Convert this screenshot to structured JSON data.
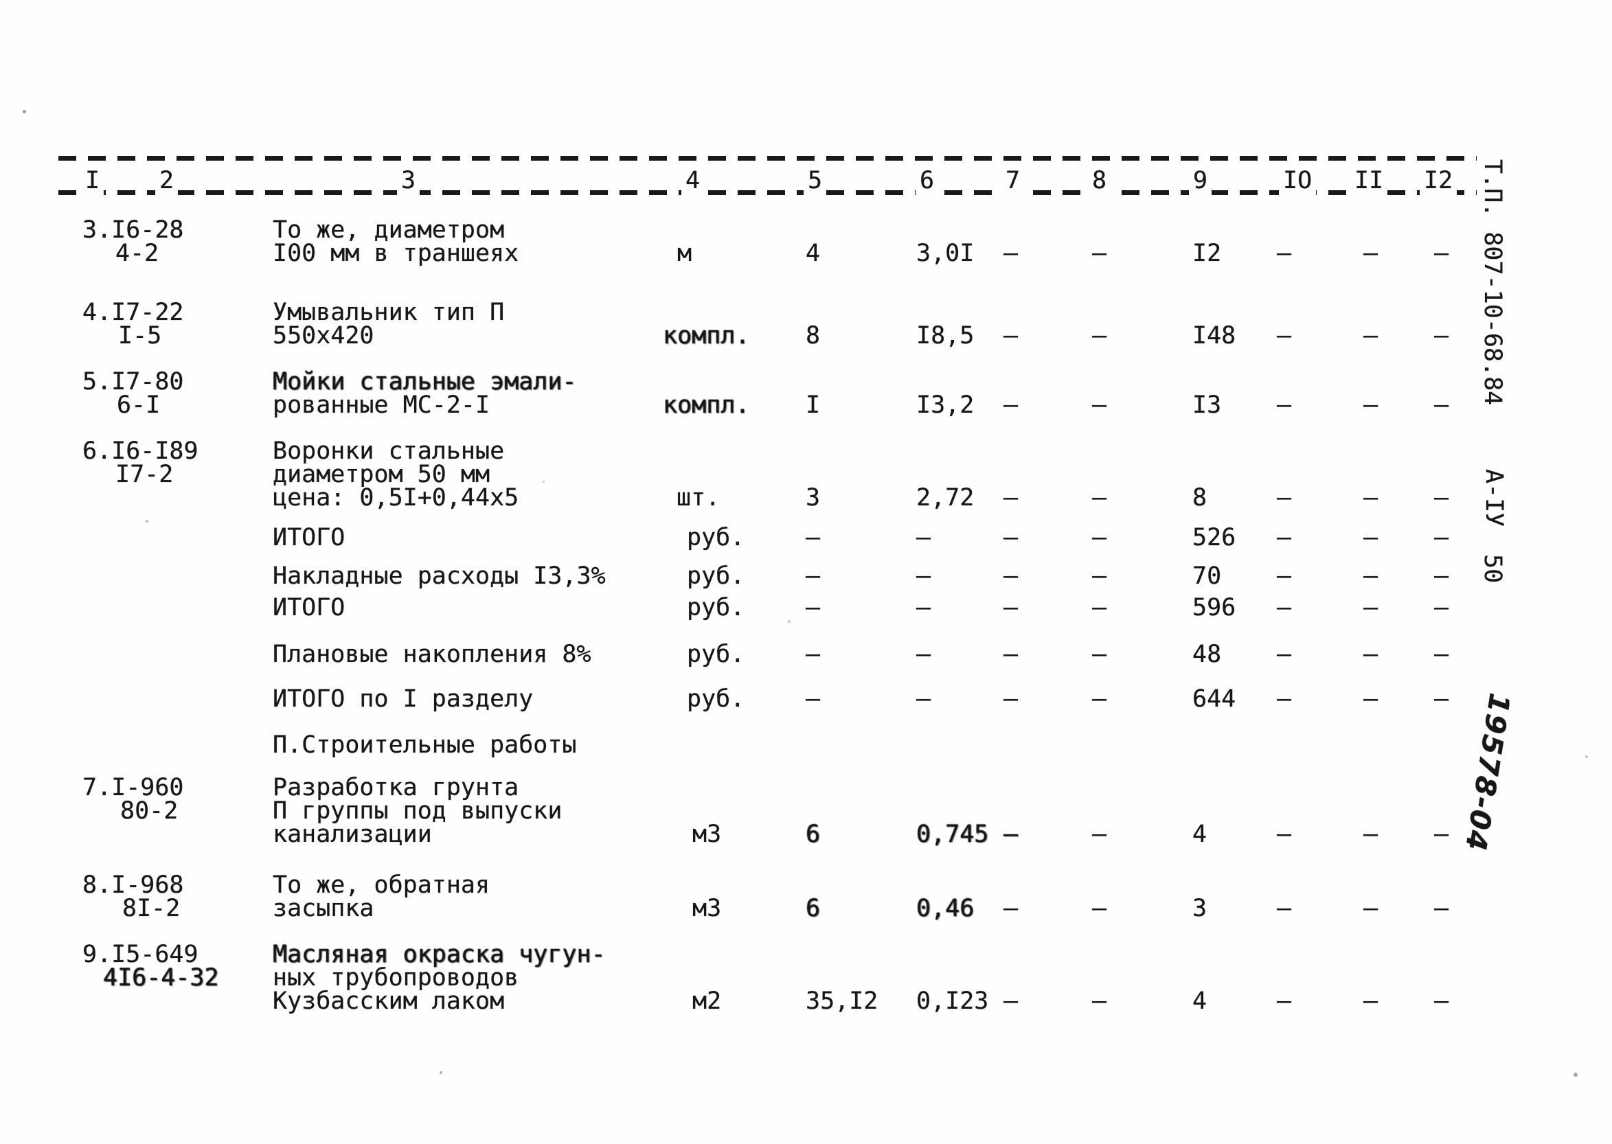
{
  "margin": {
    "type_code": "Т.П. 807-10-68.84",
    "series_code": "А-IУ",
    "sheet_number": "50",
    "handwritten_mark": "19578-04"
  },
  "table": {
    "column_numbers": [
      "I",
      "2",
      "3",
      "4",
      "5",
      "6",
      "7",
      "8",
      "9",
      "IO",
      "II",
      "I2"
    ],
    "rows": [
      {
        "kind": "item",
        "ref1": "3.I6-28",
        "ref2": "4-2",
        "desc": [
          "То же, диаметром",
          "I00 мм в траншеях"
        ],
        "unit": "м",
        "qty": "4",
        "price": "3,0I",
        "c7": "—",
        "c8": "—",
        "c9": "I2",
        "c10": "—",
        "c11": "—",
        "c12": "—"
      },
      {
        "kind": "item",
        "ref1": "4.I7-22",
        "ref2": "I-5",
        "desc": [
          "Умывальник тип П",
          "550х420"
        ],
        "unit": "компл.",
        "qty": "8",
        "price": "I8,5",
        "c7": "—",
        "c8": "—",
        "c9": "I48",
        "c10": "—",
        "c11": "—",
        "c12": "—"
      },
      {
        "kind": "item",
        "ref1": "5.I7-80",
        "ref2": "6-I",
        "desc": [
          "Мойки стальные эмали-",
          "рованные МС-2-I"
        ],
        "unit": "компл.",
        "qty": "I",
        "price": "I3,2",
        "c7": "—",
        "c8": "—",
        "c9": "I3",
        "c10": "—",
        "c11": "—",
        "c12": "—"
      },
      {
        "kind": "item",
        "ref1": "6.I6-I89",
        "ref2": "I7-2",
        "desc": [
          "Воронки стальные",
          "диаметром 50 мм",
          "цена: 0,5I+0,44х5"
        ],
        "unit": "шт.",
        "qty": "3",
        "price": "2,72",
        "c7": "—",
        "c8": "—",
        "c9": "8",
        "c10": "—",
        "c11": "—",
        "c12": "—"
      },
      {
        "kind": "summary",
        "label": "ИТОГО",
        "unit": "руб.",
        "qty": "—",
        "price": "—",
        "c7": "—",
        "c8": "—",
        "c9": "526",
        "c10": "—",
        "c11": "—",
        "c12": "—"
      },
      {
        "kind": "summary",
        "label": "Накладные расходы I3,3%",
        "unit": "руб.",
        "qty": "—",
        "price": "—",
        "c7": "—",
        "c8": "—",
        "c9": "70",
        "c10": "—",
        "c11": "—",
        "c12": "—"
      },
      {
        "kind": "summary",
        "label": "ИТОГО",
        "unit": "руб.",
        "qty": "—",
        "price": "—",
        "c7": "—",
        "c8": "—",
        "c9": "596",
        "c10": "—",
        "c11": "—",
        "c12": "—"
      },
      {
        "kind": "summary",
        "label": "Плановые накопления 8%",
        "unit": "руб.",
        "qty": "—",
        "price": "—",
        "c7": "—",
        "c8": "—",
        "c9": "48",
        "c10": "—",
        "c11": "—",
        "c12": "—"
      },
      {
        "kind": "summary",
        "label": "ИТОГО по I разделу",
        "unit": "руб.",
        "qty": "—",
        "price": "—",
        "c7": "—",
        "c8": "—",
        "c9": "644",
        "c10": "—",
        "c11": "—",
        "c12": "—"
      },
      {
        "kind": "section",
        "label": "П.Строительные работы"
      },
      {
        "kind": "item",
        "ref1": "7.I-960",
        "ref2": "80-2",
        "desc": [
          "Разработка грунта",
          "П группы под выпуски",
          "канализации"
        ],
        "unit": "м3",
        "qty": "6",
        "price": "0,745",
        "c7": "—",
        "c8": "—",
        "c9": "4",
        "c10": "—",
        "c11": "—",
        "c12": "—"
      },
      {
        "kind": "item",
        "ref1": "8.I-968",
        "ref2": "8I-2",
        "desc": [
          "То же, обратная",
          "засыпка"
        ],
        "unit": "м3",
        "qty": "6",
        "price": "0,46",
        "c7": "—",
        "c8": "—",
        "c9": "3",
        "c10": "—",
        "c11": "—",
        "c12": "—"
      },
      {
        "kind": "item",
        "ref1": "9.I5-649",
        "ref2": "4I6-4-32",
        "desc": [
          "Масляная окраска чугун-",
          "ных трубопроводов",
          "Кузбасским лаком"
        ],
        "unit": "м2",
        "qty": "35,I2",
        "price": "0,I23",
        "c7": "—",
        "c8": "—",
        "c9": "4",
        "c10": "—",
        "c11": "—",
        "c12": "—"
      }
    ]
  }
}
